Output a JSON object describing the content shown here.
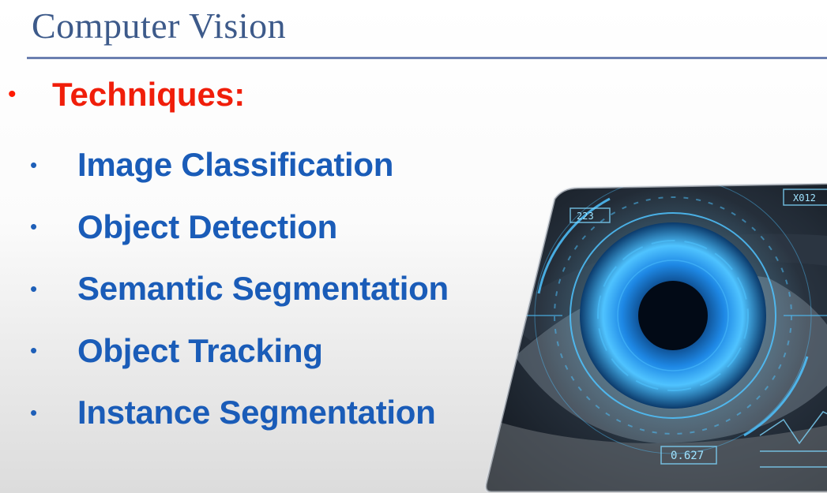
{
  "slide": {
    "title": "Computer Vision",
    "main_bullet": "Techniques:",
    "techniques": [
      "Image Classification",
      "Object Detection",
      "Semantic Segmentation",
      "Object Tracking",
      "Instance Segmentation"
    ]
  },
  "image": {
    "hud_labels": [
      "223",
      "X012",
      "0.627"
    ]
  },
  "colors": {
    "title": "#3d5a8a",
    "rule": "#6b7fb0",
    "main_bullet": "#f01e0a",
    "sub_bullets": "#1a5cb8",
    "hud": "#4fc3ff"
  }
}
